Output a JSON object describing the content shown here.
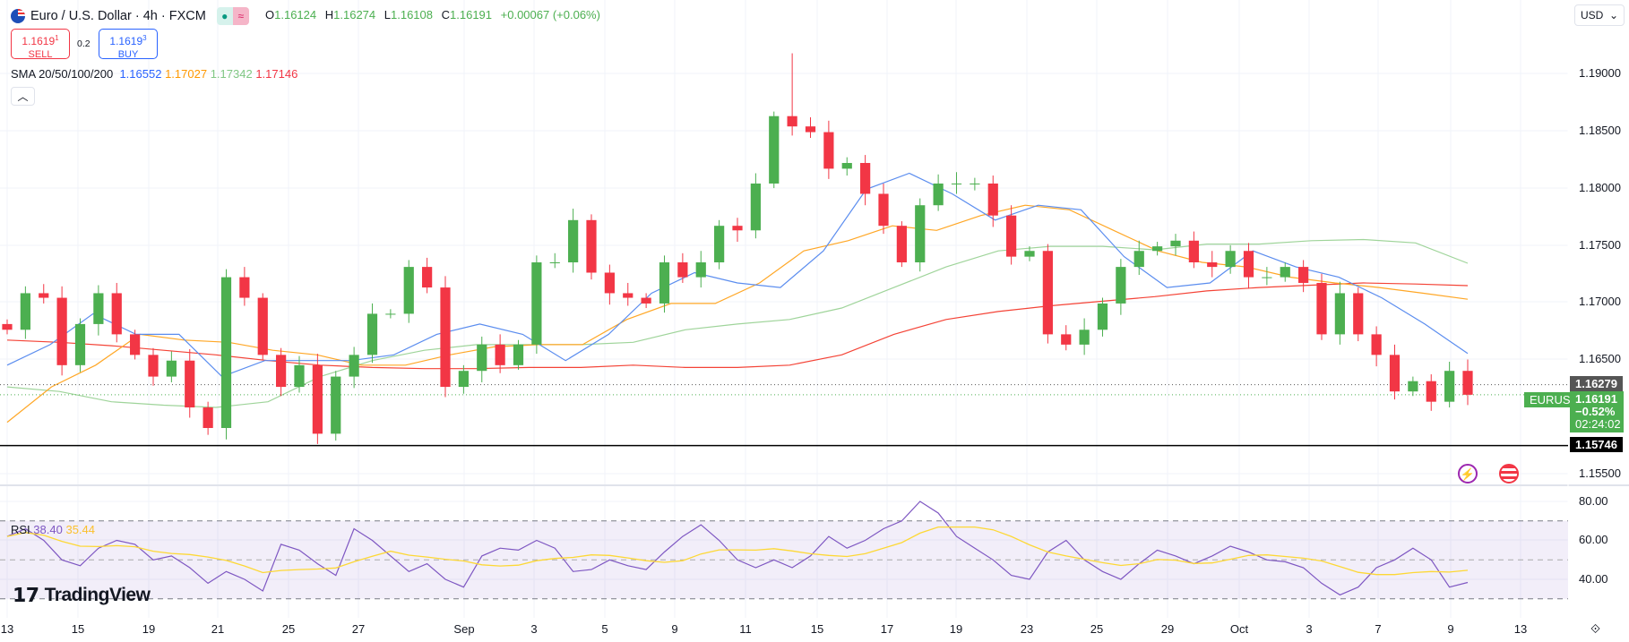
{
  "header": {
    "title": "Euro / U.S. Dollar · 4h · FXCM",
    "ohlc": [
      {
        "k": "O",
        "v": "1.16124"
      },
      {
        "k": "H",
        "v": "1.16274"
      },
      {
        "k": "L",
        "v": "1.16108"
      },
      {
        "k": "C",
        "v": "1.16191"
      }
    ],
    "change": "+0.00067 (+0.06%)"
  },
  "trade": {
    "sell_price": "1.1619",
    "sell_sup": "1",
    "sell_label": "SELL",
    "spread": "0.2",
    "buy_price": "1.1619",
    "buy_sup": "3",
    "buy_label": "BUY"
  },
  "sma_legend": {
    "label": "SMA 20/50/100/200",
    "v20": "1.16552",
    "v50": "1.17027",
    "v100": "1.17342",
    "v200": "1.17146"
  },
  "currency": "USD",
  "colors": {
    "up": "#4caf50",
    "down": "#f23645",
    "sma20": "#5b8def",
    "sma50": "#ffa726",
    "sma100": "#9fd49a",
    "sma200": "#f44336",
    "rsi": "#7e57c2",
    "rsi_ma": "#fdd835"
  },
  "price_axis": [
    "1.19000",
    "1.18500",
    "1.18000",
    "1.17500",
    "1.17000",
    "1.16500",
    "1.15500"
  ],
  "tags": {
    "prev_close": "1.16279",
    "symbol": "EURUSD",
    "last": "1.16191",
    "last_change": "−0.52%",
    "countdown": "02:24:02",
    "hline": "1.15746"
  },
  "rsi": {
    "label": "RSI",
    "value": "38.40",
    "ma_value": "35.44",
    "axis": [
      "80.00",
      "60.00",
      "40.00"
    ]
  },
  "time_axis": [
    "13",
    "15",
    "19",
    "21",
    "25",
    "27",
    "Sep",
    "3",
    "5",
    "9",
    "11",
    "15",
    "17",
    "19",
    "23",
    "25",
    "29",
    "Oct",
    "3",
    "7",
    "9",
    "13"
  ],
  "logo": "TradingView",
  "chart_data": {
    "type": "candlestick",
    "symbol": "EURUSD",
    "interval": "4h",
    "ylim": [
      1.153,
      1.192
    ],
    "closes": [
      1.1676,
      1.1708,
      1.1704,
      1.1645,
      1.1681,
      1.1708,
      1.1672,
      1.1654,
      1.1635,
      1.1649,
      1.1608,
      1.159,
      1.1722,
      1.1704,
      1.1654,
      1.1626,
      1.1645,
      1.1585,
      1.1635,
      1.1654,
      1.169,
      1.169,
      1.1731,
      1.1713,
      1.1626,
      1.164,
      1.1663,
      1.1645,
      1.1663,
      1.1735,
      1.1735,
      1.1772,
      1.1726,
      1.1708,
      1.1704,
      1.1699,
      1.1735,
      1.1722,
      1.1735,
      1.1767,
      1.1763,
      1.1804,
      1.1863,
      1.1854,
      1.1849,
      1.1817,
      1.1822,
      1.1795,
      1.1767,
      1.1735,
      1.1785,
      1.1804,
      1.1804,
      1.1804,
      1.1776,
      1.174,
      1.1745,
      1.1672,
      1.1663,
      1.1676,
      1.1699,
      1.1731,
      1.1745,
      1.1749,
      1.1754,
      1.1735,
      1.1731,
      1.1745,
      1.1722,
      1.1722,
      1.1731,
      1.1717,
      1.1672,
      1.1708,
      1.1672,
      1.1654,
      1.1622,
      1.1631,
      1.1613,
      1.164,
      1.16191
    ],
    "sma20": [
      1.1645,
      1.1663,
      1.169,
      1.1672,
      1.1672,
      1.1635,
      1.1649,
      1.1649,
      1.1649,
      1.1654,
      1.1672,
      1.1681,
      1.1672,
      1.1649,
      1.1672,
      1.1708,
      1.1726,
      1.1717,
      1.1713,
      1.1745,
      1.1799,
      1.1813,
      1.1795,
      1.1772,
      1.1785,
      1.1781,
      1.174,
      1.1713,
      1.1717,
      1.1745,
      1.1731,
      1.1722,
      1.1704,
      1.1681,
      1.16552
    ],
    "sma50": [
      1.1595,
      1.1626,
      1.1645,
      1.1672,
      1.1667,
      1.1665,
      1.1658,
      1.1654,
      1.1645,
      1.1645,
      1.1654,
      1.1661,
      1.1663,
      1.1663,
      1.1685,
      1.1699,
      1.1699,
      1.1717,
      1.1745,
      1.1754,
      1.1767,
      1.1763,
      1.1776,
      1.1785,
      1.1781,
      1.1763,
      1.1745,
      1.1735,
      1.1731,
      1.1722,
      1.1717,
      1.1713,
      1.1708,
      1.17027
    ],
    "sma100": [
      1.1626,
      1.1622,
      1.1613,
      1.161,
      1.1608,
      1.1613,
      1.1635,
      1.1649,
      1.1658,
      1.1663,
      1.1663,
      1.1663,
      1.1665,
      1.1676,
      1.1681,
      1.1685,
      1.1695,
      1.1713,
      1.1731,
      1.1745,
      1.1749,
      1.1749,
      1.1746,
      1.1751,
      1.1751,
      1.1754,
      1.1755,
      1.1752,
      1.17342
    ],
    "sma200": [
      1.1667,
      1.1665,
      1.1662,
      1.1658,
      1.1654,
      1.1649,
      1.1645,
      1.1643,
      1.1642,
      1.1642,
      1.1643,
      1.1643,
      1.1645,
      1.1643,
      1.1643,
      1.1645,
      1.1654,
      1.1672,
      1.1685,
      1.1692,
      1.1697,
      1.1701,
      1.1705,
      1.171,
      1.1713,
      1.1715,
      1.1717,
      1.1716,
      1.17146
    ],
    "hlines": [
      1.16279,
      1.15746
    ],
    "rsi": [
      62,
      66,
      60,
      50,
      47,
      56,
      60,
      58,
      50,
      52,
      46,
      38,
      44,
      40,
      34,
      58,
      55,
      48,
      42,
      66,
      60,
      52,
      44,
      48,
      40,
      36,
      52,
      56,
      55,
      60,
      56,
      44,
      45,
      50,
      47,
      45,
      54,
      62,
      68,
      60,
      50,
      46,
      50,
      46,
      52,
      62,
      56,
      60,
      66,
      70,
      80,
      74,
      62,
      56,
      50,
      42,
      40,
      54,
      60,
      50,
      44,
      40,
      48,
      55,
      52,
      48,
      52,
      57,
      54,
      50,
      49,
      46,
      38,
      32,
      36,
      46,
      50,
      56,
      50,
      36,
      38.4
    ],
    "rsi_levels": [
      70,
      50,
      30
    ],
    "rsi_ylim": [
      20,
      90
    ]
  }
}
